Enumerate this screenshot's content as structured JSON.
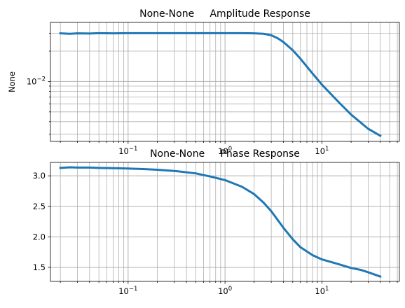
{
  "chart_data": [
    {
      "type": "line",
      "title": "None-None     Amplitude Response",
      "xlabel": "",
      "ylabel": "None",
      "xscale": "log",
      "yscale": "log",
      "xlim": [
        0.0158,
        63
      ],
      "ylim": [
        0.00255,
        0.0385
      ],
      "grid": true,
      "xticks": [
        {
          "value": 0.1,
          "base": "10",
          "exp": "−1"
        },
        {
          "value": 1,
          "base": "10",
          "exp": "0"
        },
        {
          "value": 10,
          "base": "10",
          "exp": "1"
        }
      ],
      "yticks": [
        {
          "value": 0.01,
          "base": "10",
          "exp": "−2"
        }
      ],
      "series": [
        {
          "color": "#1f77b4",
          "x": [
            0.02,
            0.025,
            0.03,
            0.04,
            0.05,
            0.07,
            0.1,
            0.15,
            0.2,
            0.3,
            0.5,
            0.7,
            1.0,
            1.5,
            2.0,
            2.5,
            3.0,
            3.5,
            4.0,
            5.0,
            6.0,
            8.0,
            10.0,
            15.0,
            20.0,
            30.0,
            40.0
          ],
          "y": [
            0.03,
            0.0297,
            0.03,
            0.0299,
            0.0301,
            0.03,
            0.0301,
            0.0301,
            0.0301,
            0.0301,
            0.0301,
            0.0301,
            0.0301,
            0.0301,
            0.03,
            0.0297,
            0.0287,
            0.0268,
            0.0246,
            0.0204,
            0.0168,
            0.012,
            0.0093,
            0.0062,
            0.0047,
            0.0034,
            0.0029
          ]
        }
      ]
    },
    {
      "type": "line",
      "title": "None-None     Phase Response",
      "xlabel": "",
      "ylabel": "",
      "xscale": "log",
      "yscale": "linear",
      "xlim": [
        0.0158,
        63
      ],
      "ylim": [
        1.27,
        3.22
      ],
      "grid": true,
      "xticks": [
        {
          "value": 0.1,
          "base": "10",
          "exp": "−1"
        },
        {
          "value": 1,
          "base": "10",
          "exp": "0"
        },
        {
          "value": 10,
          "base": "10",
          "exp": "1"
        }
      ],
      "yticks": [
        {
          "value": 1.5,
          "label": "1.5"
        },
        {
          "value": 2.0,
          "label": "2.0"
        },
        {
          "value": 2.5,
          "label": "2.5"
        },
        {
          "value": 3.0,
          "label": "3.0"
        }
      ],
      "series": [
        {
          "color": "#1f77b4",
          "x": [
            0.02,
            0.025,
            0.03,
            0.04,
            0.05,
            0.07,
            0.1,
            0.15,
            0.2,
            0.3,
            0.5,
            0.7,
            1.0,
            1.5,
            2.0,
            2.5,
            3.0,
            4.0,
            5.0,
            6.0,
            8.0,
            10.0,
            15.0,
            20.0,
            25.0,
            30.0,
            40.0
          ],
          "y": [
            3.13,
            3.14,
            3.135,
            3.135,
            3.13,
            3.125,
            3.12,
            3.11,
            3.1,
            3.08,
            3.04,
            2.99,
            2.93,
            2.82,
            2.7,
            2.56,
            2.42,
            2.15,
            1.96,
            1.83,
            1.7,
            1.63,
            1.55,
            1.49,
            1.46,
            1.42,
            1.35
          ]
        }
      ]
    }
  ]
}
